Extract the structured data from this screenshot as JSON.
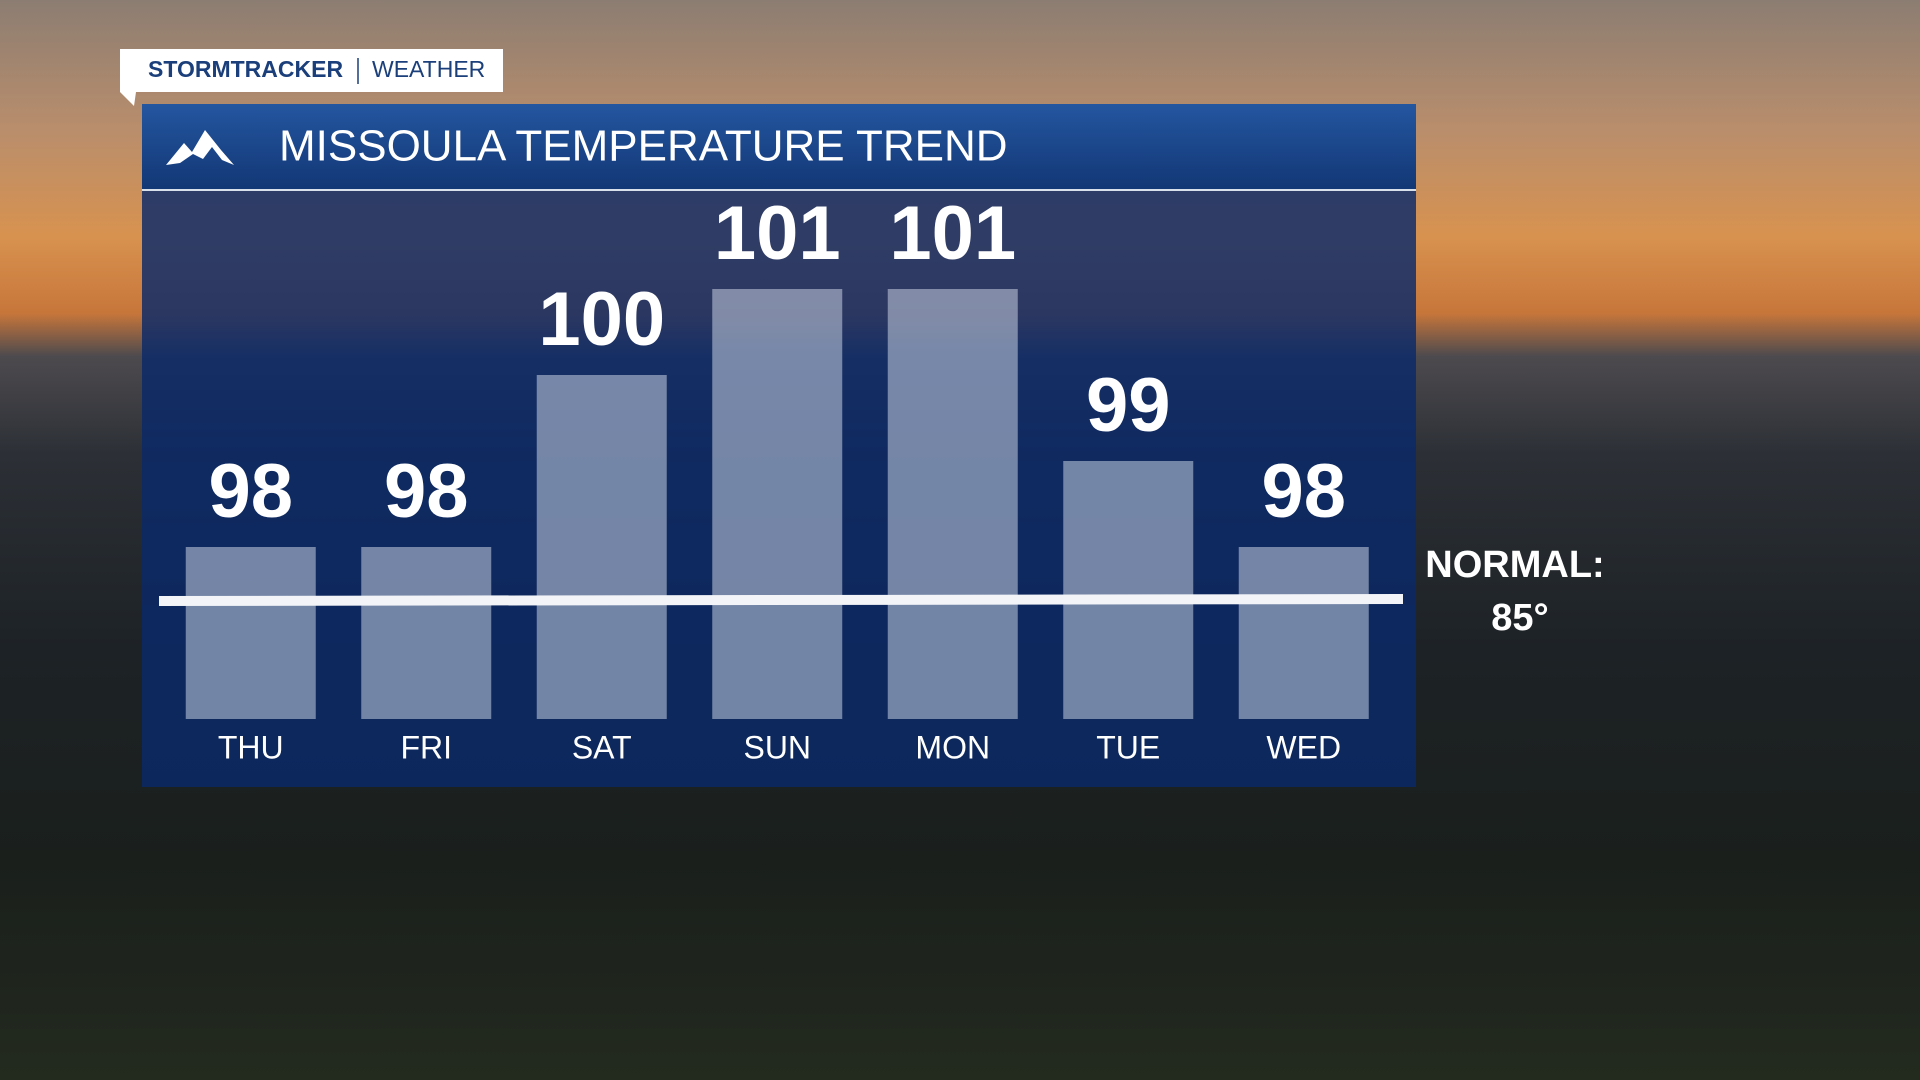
{
  "header": {
    "brand": "STORMTRACKER",
    "section": "WEATHER"
  },
  "chart_data": {
    "type": "bar",
    "title": "MISSOULA TEMPERATURE TREND",
    "categories": [
      "THU",
      "FRI",
      "SAT",
      "SUN",
      "MON",
      "TUE",
      "WED"
    ],
    "values": [
      98,
      98,
      100,
      101,
      101,
      99,
      98
    ],
    "color": "#c8d2e2",
    "ylim": [
      96,
      102
    ],
    "annotations": [
      "NORMAL:",
      "85°"
    ]
  }
}
